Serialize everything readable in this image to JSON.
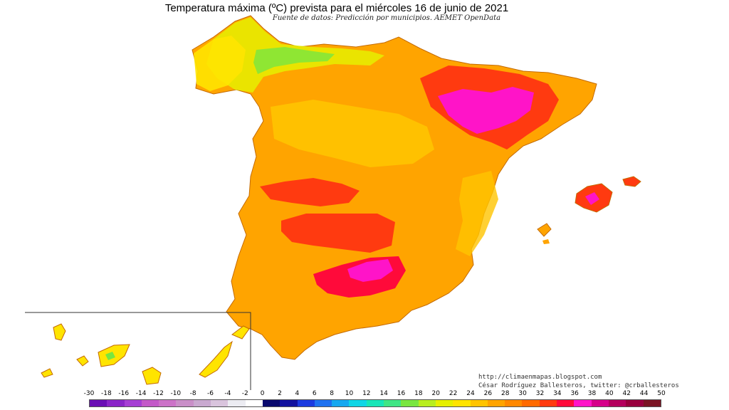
{
  "title": "Temperatura máxima (ºC) prevista para el miércoles 16 de junio de 2021",
  "subtitle": "Fuente de datos: Predicción por municipios. AEMET OpenData",
  "credits": {
    "url": "http://climaenmapas.blogspot.com",
    "author": "César Rodríguez Ballesteros, twitter: @crballesteros"
  },
  "legend": {
    "labels": [
      "-30",
      "-18",
      "-16",
      "-14",
      "-12",
      "-10",
      "-8",
      "-6",
      "-4",
      "-2",
      "0",
      "2",
      "4",
      "6",
      "8",
      "10",
      "12",
      "14",
      "16",
      "18",
      "20",
      "22",
      "24",
      "26",
      "28",
      "30",
      "32",
      "34",
      "36",
      "38",
      "40",
      "42",
      "44",
      "50"
    ],
    "colors": [
      "#6a0fb5",
      "#8a25c8",
      "#a63fd4",
      "#c35ac8",
      "#cc73c8",
      "#c98fc8",
      "#c9a9d0",
      "#d9c4dd",
      "#ececf2",
      "#ffffff",
      "#0a0a6e",
      "#12129e",
      "#1c3be0",
      "#1f72f0",
      "#16a8f0",
      "#10d6e6",
      "#18e6b8",
      "#3fe686",
      "#78e640",
      "#b8ee20",
      "#e6f000",
      "#ffe400",
      "#ffc400",
      "#ffa400",
      "#ff8800",
      "#ff6a00",
      "#ff3a10",
      "#ff0a3a",
      "#ff14c8",
      "#d6008a",
      "#b4005e",
      "#98003e",
      "#7a1424"
    ],
    "scale_colors": {
      "warm_28": "#ff8800",
      "hot_34": "#ff0a3a",
      "very_hot_36": "#ff14c8",
      "mild_24": "#ffc400",
      "cool_18": "#b8ee20"
    }
  }
}
